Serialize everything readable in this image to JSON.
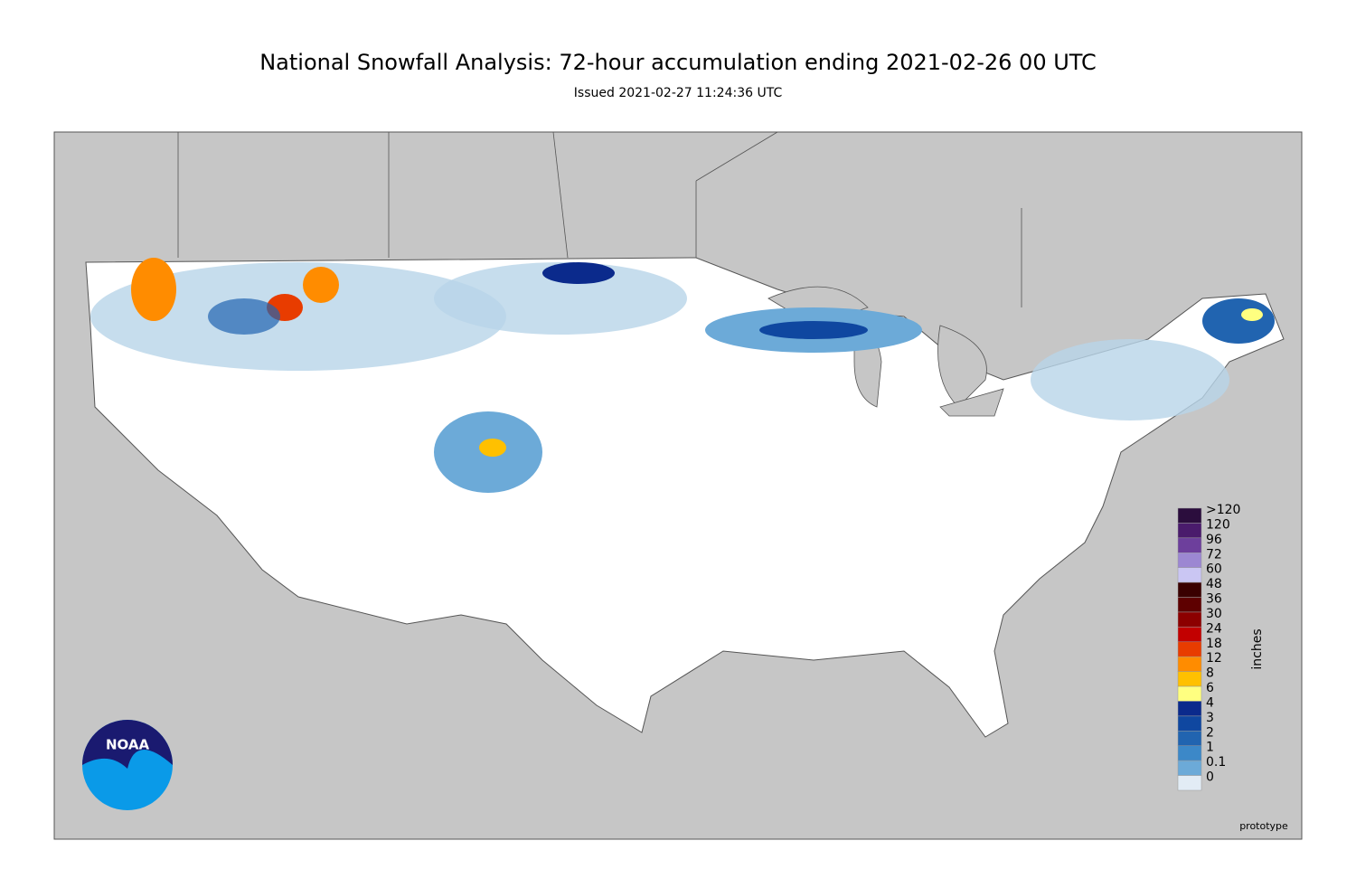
{
  "title": "National Snowfall Analysis: 72-hour accumulation ending 2021-02-26 00 UTC",
  "subtitle": "Issued 2021-02-27 11:24:36 UTC",
  "legend": {
    "unit": "inches",
    "levels": [
      ">120",
      "120",
      "96",
      "72",
      "60",
      "48",
      "36",
      "30",
      "24",
      "18",
      "12",
      "8",
      "6",
      "4",
      "3",
      "2",
      "1",
      "0.1",
      "0"
    ],
    "colors": [
      "#2b0d3d",
      "#4a1b6c",
      "#6d3f9c",
      "#9c87d2",
      "#cac6f3",
      "#3a0000",
      "#5e0000",
      "#8c0000",
      "#c20000",
      "#e83c00",
      "#ff8c00",
      "#ffc000",
      "#ffff80",
      "#0b2a8c",
      "#0f47a0",
      "#2164b0",
      "#3c88c8",
      "#6caad8",
      "#e2ecf5"
    ]
  },
  "note": "prototype",
  "logo": "NOAA"
}
